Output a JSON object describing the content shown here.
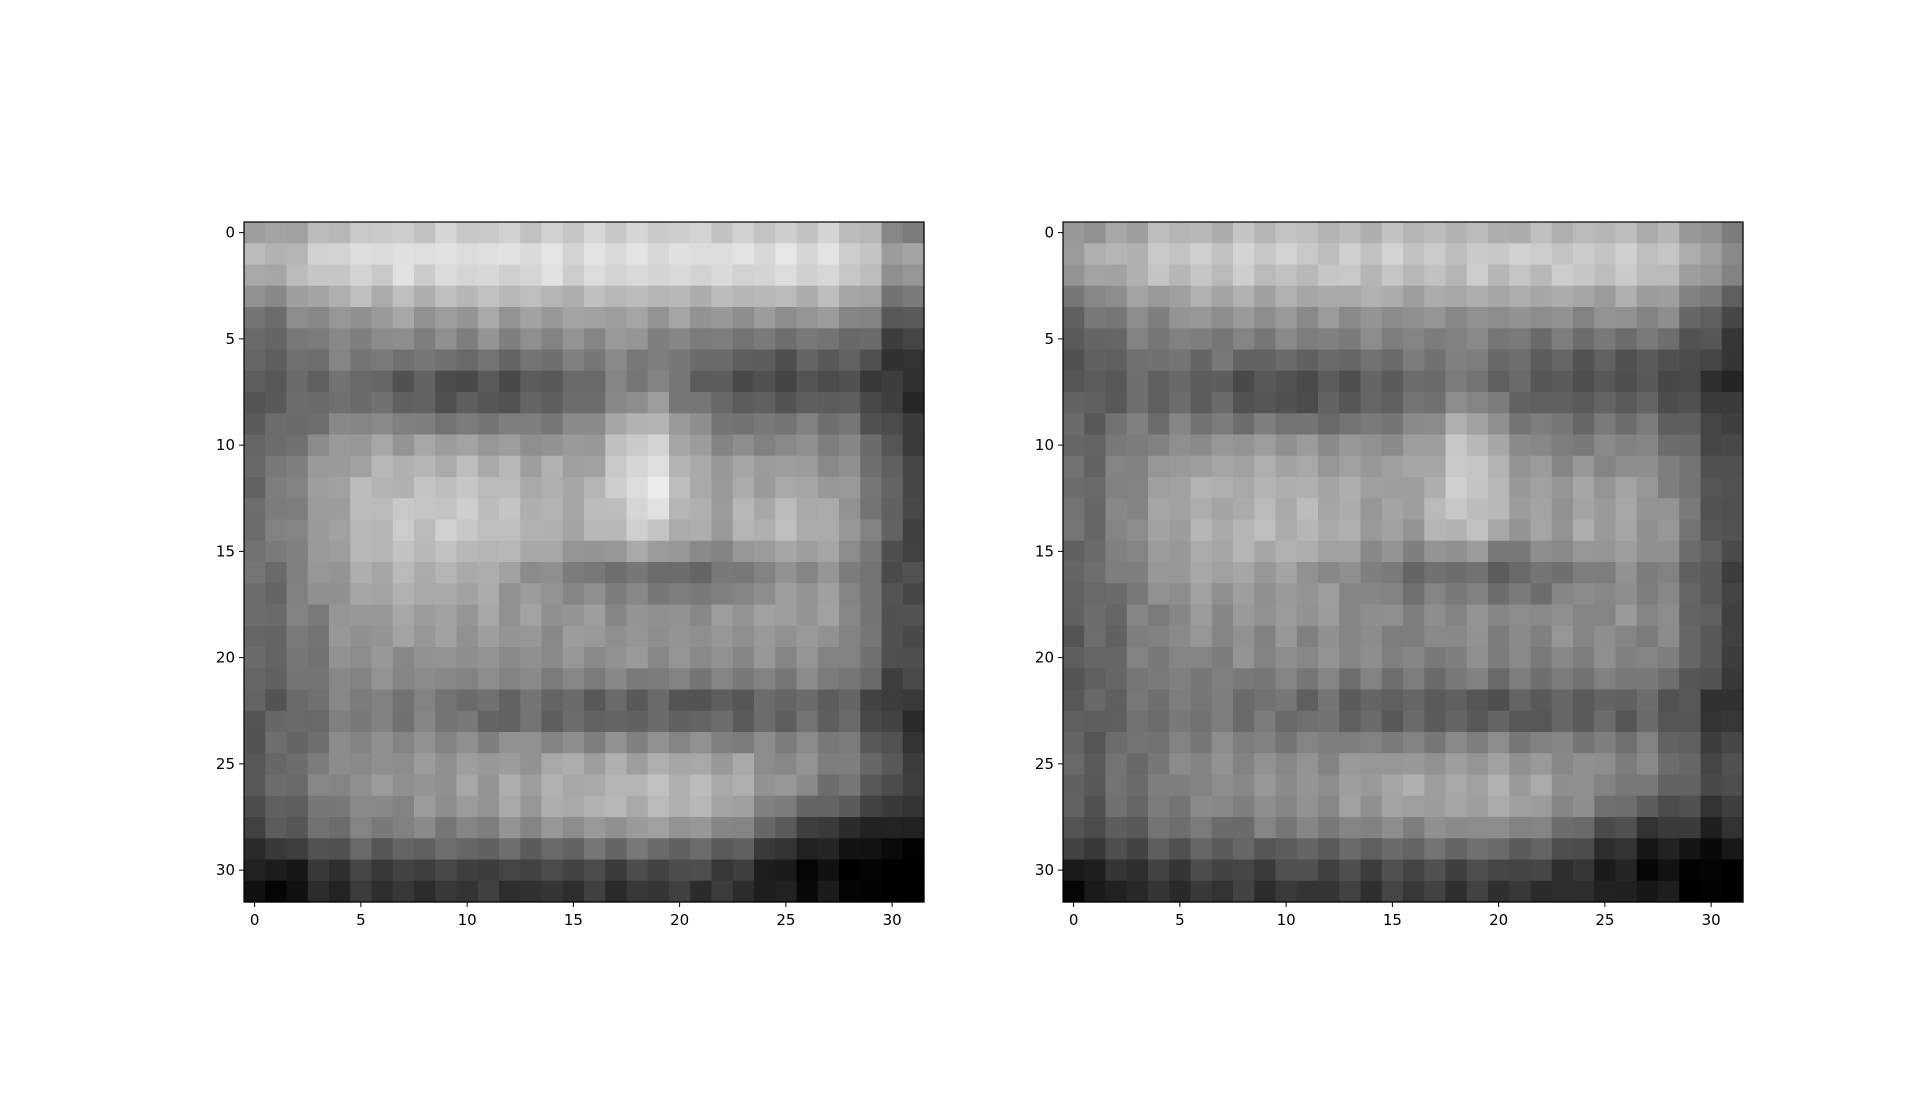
{
  "chart_data": [
    {
      "type": "heatmap",
      "colormap": "gray",
      "value_range": [
        0,
        1
      ],
      "x_ticks": [
        "0",
        "5",
        "10",
        "15",
        "20",
        "25",
        "30"
      ],
      "y_ticks": [
        "0",
        "5",
        "10",
        "15",
        "20",
        "25",
        "30"
      ],
      "xlim": [
        -0.5,
        31.5
      ],
      "ylim": [
        31.5,
        -0.5
      ],
      "rows": 32,
      "cols": 32,
      "grid": false
    },
    {
      "type": "heatmap",
      "colormap": "gray",
      "value_range": [
        0,
        1
      ],
      "x_ticks": [
        "0",
        "5",
        "10",
        "15",
        "20",
        "25",
        "30"
      ],
      "y_ticks": [
        "0",
        "5",
        "10",
        "15",
        "20",
        "25",
        "30"
      ],
      "xlim": [
        -0.5,
        31.5
      ],
      "ylim": [
        31.5,
        -0.5
      ],
      "rows": 32,
      "cols": 32,
      "grid": false
    }
  ]
}
